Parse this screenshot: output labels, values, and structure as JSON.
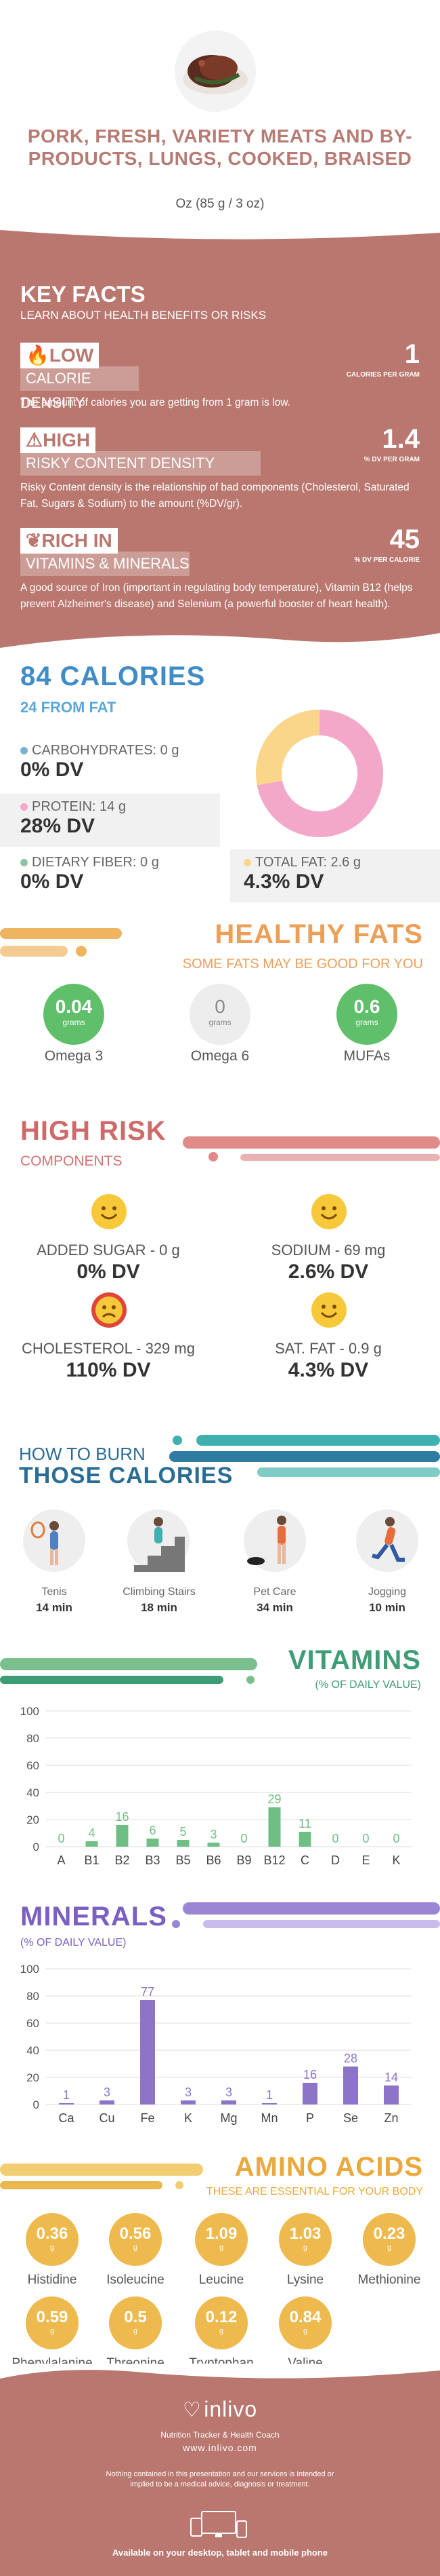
{
  "header": {
    "title": "PORK, FRESH, VARIETY MEATS AND BY-PRODUCTS, LUNGS, COOKED, BRAISED",
    "serving": "Oz (85 g / 3 oz)"
  },
  "key_facts": {
    "title": "KEY FACTS",
    "subtitle": "LEARN ABOUT HEALTH BENEFITS OR RISKS",
    "items": [
      {
        "tag": "LOW",
        "label": "CALORIE DENSITY",
        "value": "1",
        "unit": "CALORIES PER GRAM",
        "desc": "The amount of calories you are getting from 1 gram is low."
      },
      {
        "tag": "HIGH",
        "label": "RISKY CONTENT DENSITY",
        "value": "1.4",
        "unit": "% DV PER GRAM",
        "desc": "Risky Content density is the relationship of bad components (Cholesterol, Saturated Fat, Sugars & Sodium) to the amount (%DV/gr)."
      },
      {
        "tag": "RICH  IN",
        "label": "VITAMINS & MINERALS",
        "value": "45",
        "unit": "% DV PER CALORIE",
        "desc": "A good source of Iron (important in regulating body temperature), Vitamin B12 (helps prevent Alzheimer's disease) and Selenium (a powerful booster of heart health)."
      }
    ]
  },
  "calories": {
    "title": "84 CALORIES",
    "from_fat": "24 FROM FAT",
    "carbs": {
      "label": "CARBOHYDRATES: 0 g",
      "dv": "0% DV",
      "color": "#7ab0d4"
    },
    "protein": {
      "label": "PROTEIN: 14 g",
      "dv": "28% DV",
      "color": "#f4a8c9"
    },
    "fiber": {
      "label": "DIETARY FIBER: 0 g",
      "dv": "0% DV",
      "color": "#8cc5a4"
    },
    "fat": {
      "label": "TOTAL FAT: 2.6 g",
      "dv": "4.3% DV",
      "color": "#f9d68a"
    },
    "donut": {
      "protein_fraction": 0.72,
      "fat_fraction": 0.28
    }
  },
  "healthy_fats": {
    "title": "HEALTHY FATS",
    "subtitle": "SOME FATS MAY BE GOOD FOR YOU",
    "items": [
      {
        "value": "0.04",
        "unit": "grams",
        "name": "Omega 3",
        "color": "#5fbf6a"
      },
      {
        "value": "0",
        "unit": "grams",
        "name": "Omega 6",
        "color": "#ededed"
      },
      {
        "value": "0.6",
        "unit": "grams",
        "name": "MUFAs",
        "color": "#5fbf6a"
      }
    ]
  },
  "high_risk": {
    "title": "HIGH RISK",
    "subtitle": "COMPONENTS",
    "items": [
      {
        "label": "ADDED SUGAR - 0 g",
        "dv": "0% DV",
        "mood": "happy"
      },
      {
        "label": "SODIUM - 69 mg",
        "dv": "2.6% DV",
        "mood": "happy"
      },
      {
        "label": "CHOLESTEROL - 329 mg",
        "dv": "110% DV",
        "mood": "sad"
      },
      {
        "label": "SAT. FAT - 0.9 g",
        "dv": "4.3% DV",
        "mood": "happy"
      }
    ]
  },
  "burn": {
    "title1": "HOW TO BURN",
    "title2": "THOSE CALORIES",
    "items": [
      {
        "name": "Tenis",
        "time": "14 min"
      },
      {
        "name": "Climbing Stairs",
        "time": "18 min"
      },
      {
        "name": "Pet Care",
        "time": "34 min"
      },
      {
        "name": "Jogging",
        "time": "10 min"
      }
    ]
  },
  "vitamins": {
    "title": "VITAMINS",
    "subtitle": "(% OF DAILY VALUE)"
  },
  "minerals": {
    "title": "MINERALS",
    "subtitle": "(% OF DAILY VALUE)"
  },
  "chart_data": [
    {
      "type": "bar",
      "title": "VITAMINS",
      "categories": [
        "A",
        "B1",
        "B2",
        "B3",
        "B5",
        "B6",
        "B9",
        "B12",
        "C",
        "D",
        "E",
        "K"
      ],
      "values": [
        0,
        4,
        16,
        6,
        5,
        3,
        0,
        29,
        11,
        0,
        0,
        0
      ],
      "yticks": [
        0,
        20,
        40,
        60,
        80,
        100
      ],
      "ylim": [
        0,
        100
      ],
      "grid": true,
      "color": "#6fbf84"
    },
    {
      "type": "bar",
      "title": "MINERALS",
      "categories": [
        "Ca",
        "Cu",
        "Fe",
        "K",
        "Mg",
        "Mn",
        "P",
        "Se",
        "Zn"
      ],
      "values": [
        1,
        3,
        77,
        3,
        3,
        1,
        16,
        28,
        14
      ],
      "yticks": [
        0,
        20,
        40,
        60,
        80,
        100
      ],
      "ylim": [
        0,
        100
      ],
      "grid": true,
      "color": "#8e74c8"
    }
  ],
  "amino": {
    "title": "AMINO ACIDS",
    "subtitle": "THESE ARE ESSENTIAL FOR YOUR BODY",
    "unit": "g",
    "items": [
      {
        "value": "0.36",
        "name": "Histidine"
      },
      {
        "value": "0.56",
        "name": "Isoleucine"
      },
      {
        "value": "1.09",
        "name": "Leucine"
      },
      {
        "value": "1.03",
        "name": "Lysine"
      },
      {
        "value": "0.23",
        "name": "Methionine"
      },
      {
        "value": "0.59",
        "name": "Phenylalanine"
      },
      {
        "value": "0.5",
        "name": "Threonine"
      },
      {
        "value": "0.12",
        "name": "Tryptophan"
      },
      {
        "value": "0.84",
        "name": "Valine"
      }
    ]
  },
  "footer": {
    "brand": "inlivo",
    "tagline": "Nutrition Tracker & Health Coach",
    "url": "www.inlivo.com",
    "disclaimer": "Nothing contained in this presentation and our services is intended or implied to be a medical advice, diagnosis or treatment.",
    "available": "Available on your desktop, tablet and mobile phone"
  }
}
